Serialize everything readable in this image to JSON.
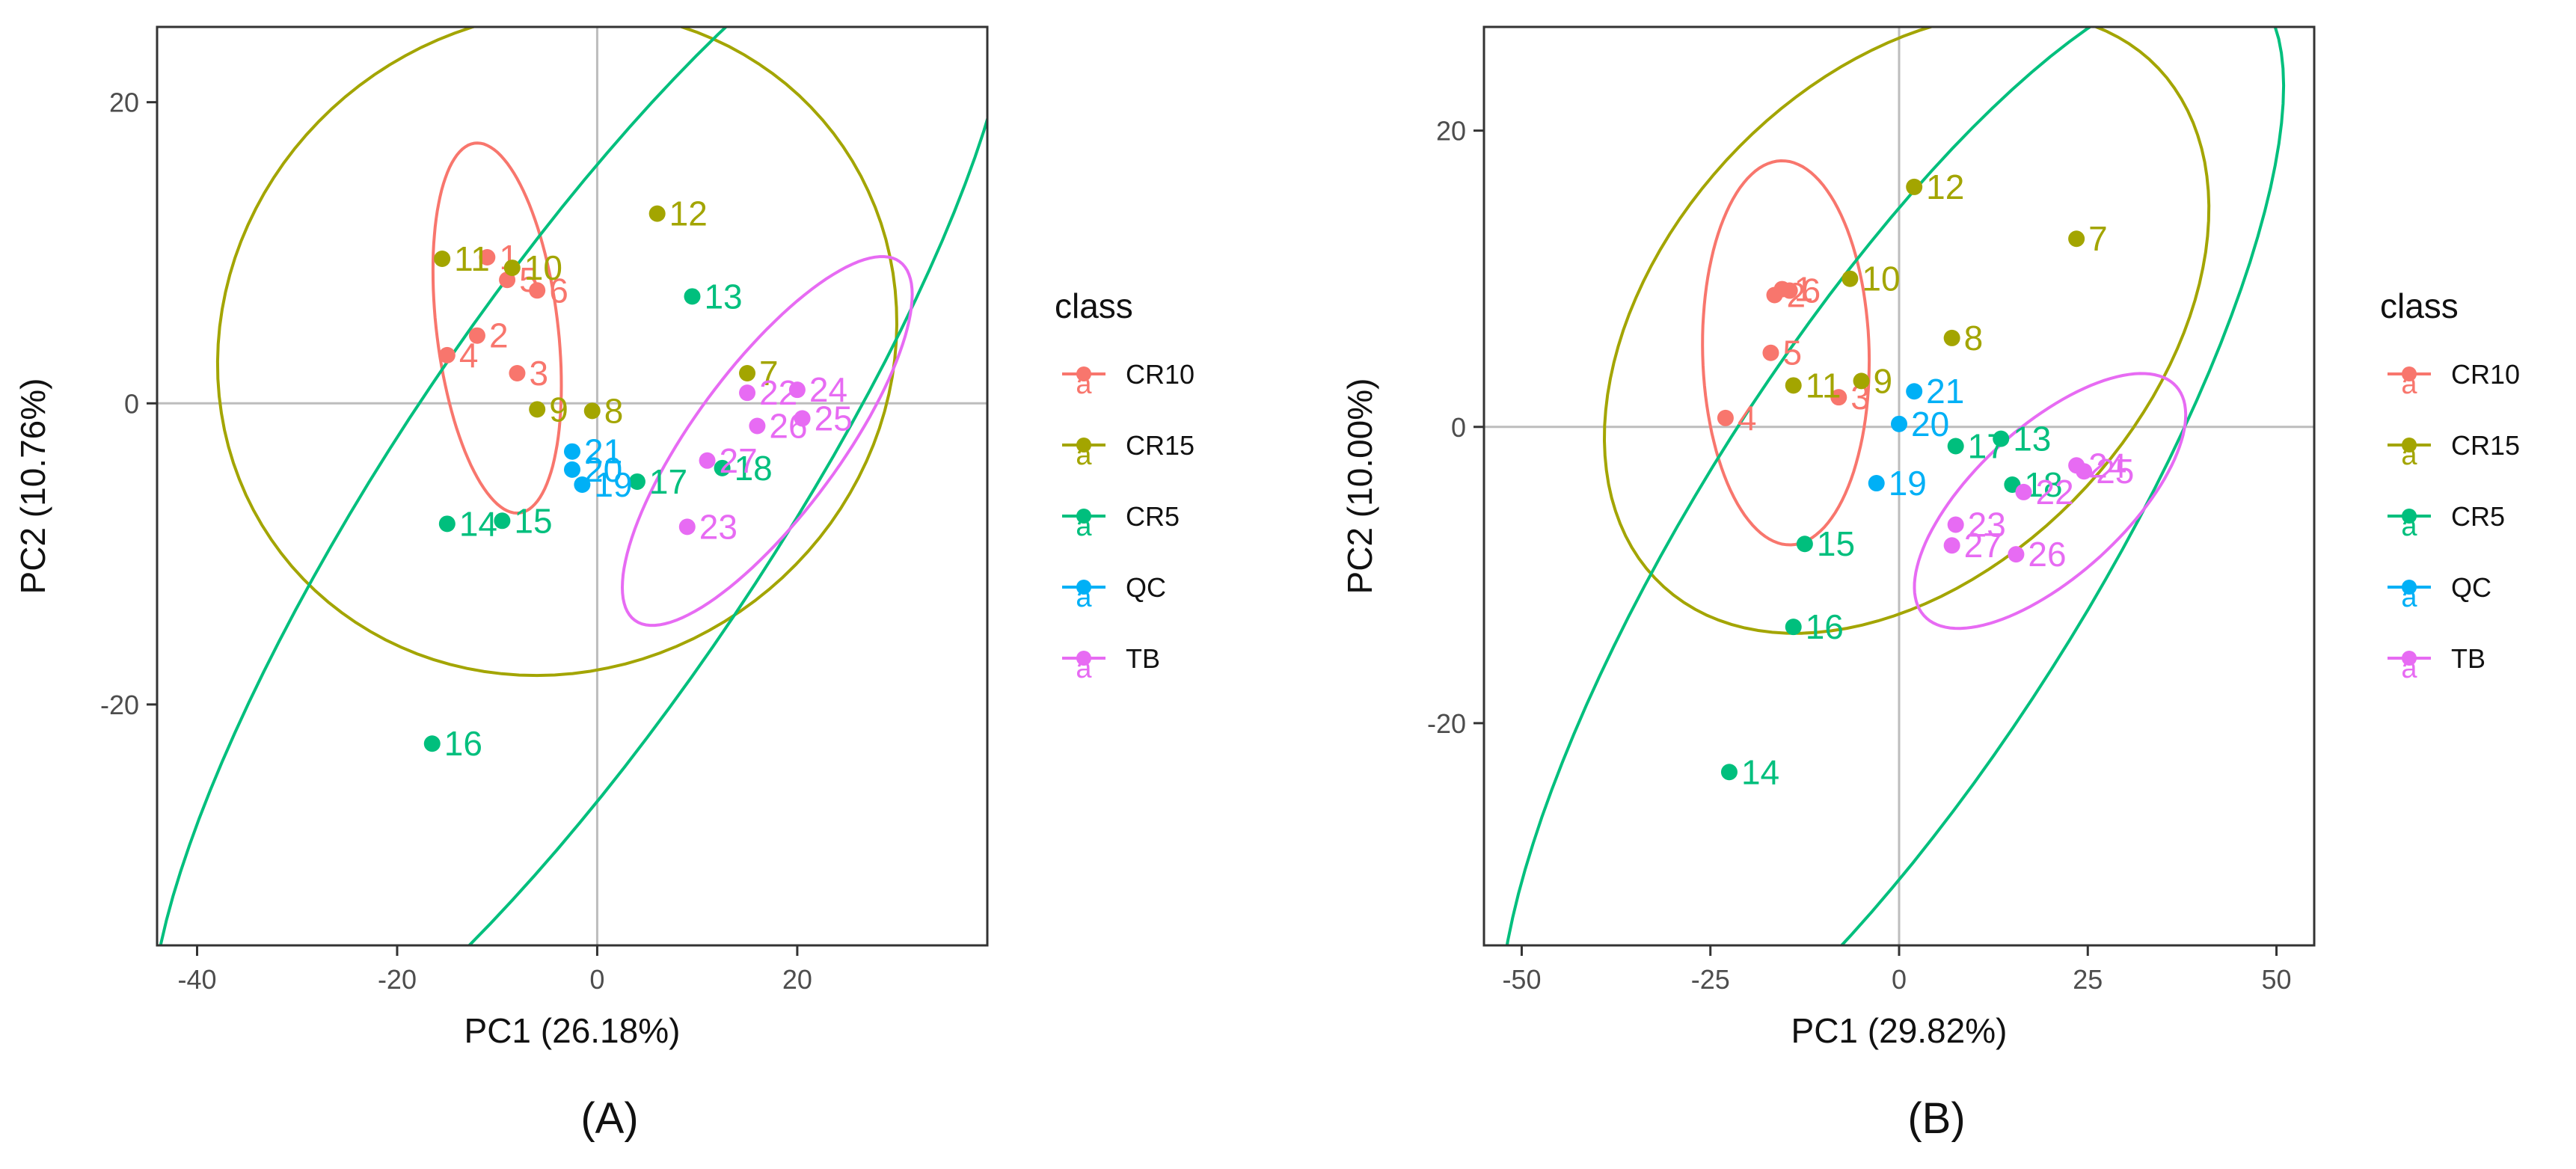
{
  "colors": {
    "CR10": "#F8766D",
    "CR15": "#A3A500",
    "CR5": "#00BF7D",
    "QC": "#00B0F6",
    "TB": "#E76BF3"
  },
  "chart_data": [
    {
      "type": "scatter",
      "panel_label": "(A)",
      "xlabel": "PC1 (26.18%)",
      "ylabel": "PC2 (10.76%)",
      "xlim": [
        -44,
        39
      ],
      "ylim": [
        -36,
        25
      ],
      "xticks": [
        -40,
        -20,
        0,
        20
      ],
      "xtick_labels": [
        "-40",
        "-20",
        "0",
        "20"
      ],
      "yticks": [
        -20,
        0,
        20
      ],
      "ytick_labels": [
        "-20",
        "0",
        "20"
      ],
      "legend": {
        "title": "class",
        "position": "right",
        "entries": [
          "CR10",
          "CR15",
          "CR5",
          "QC",
          "TB"
        ],
        "key_glyph": "a"
      },
      "series": [
        {
          "name": "CR10",
          "points": [
            {
              "label": "1",
              "x": -11,
              "y": 9.7
            },
            {
              "label": "5",
              "x": -9,
              "y": 8.2
            },
            {
              "label": "6",
              "x": -6,
              "y": 7.5
            },
            {
              "label": "2",
              "x": -12,
              "y": 4.5
            },
            {
              "label": "4",
              "x": -15,
              "y": 3.2
            },
            {
              "label": "3",
              "x": -8,
              "y": 2
            }
          ]
        },
        {
          "name": "CR15",
          "points": [
            {
              "label": "11",
              "x": -15.5,
              "y": 9.6
            },
            {
              "label": "10",
              "x": -8.5,
              "y": 9
            },
            {
              "label": "12",
              "x": 6,
              "y": 12.6
            },
            {
              "label": "7",
              "x": 15,
              "y": 2
            },
            {
              "label": "9",
              "x": -6,
              "y": -0.4
            },
            {
              "label": "8",
              "x": -0.5,
              "y": -0.5
            }
          ]
        },
        {
          "name": "CR5",
          "points": [
            {
              "label": "13",
              "x": 9.5,
              "y": 7.1
            },
            {
              "label": "17",
              "x": 4,
              "y": -5.2
            },
            {
              "label": "18",
              "x": 12.5,
              "y": -4.3
            },
            {
              "label": "14",
              "x": -15,
              "y": -8
            },
            {
              "label": "15",
              "x": -9.5,
              "y": -7.8
            },
            {
              "label": "16",
              "x": -16.5,
              "y": -22.6
            }
          ]
        },
        {
          "name": "QC",
          "points": [
            {
              "label": "21",
              "x": -2.5,
              "y": -3.2
            },
            {
              "label": "20",
              "x": -2.5,
              "y": -4.4
            },
            {
              "label": "19",
              "x": -1.5,
              "y": -5.4
            }
          ]
        },
        {
          "name": "TB",
          "points": [
            {
              "label": "22",
              "x": 15,
              "y": 0.7
            },
            {
              "label": "24",
              "x": 20,
              "y": 0.9
            },
            {
              "label": "26",
              "x": 16,
              "y": -1.5
            },
            {
              "label": "25",
              "x": 20.5,
              "y": -1
            },
            {
              "label": "27",
              "x": 11,
              "y": -3.8
            },
            {
              "label": "23",
              "x": 9,
              "y": -8.2
            }
          ]
        }
      ],
      "ellipses": [
        {
          "class": "CR10",
          "cx": -10,
          "cy": 5,
          "rx": 6,
          "ry": 12.5,
          "angle_deg": -12
        },
        {
          "class": "CR15",
          "cx": -4,
          "cy": 4,
          "rx": 34,
          "ry": 22,
          "angle_deg": -4
        },
        {
          "class": "CR5",
          "cx": -1.5,
          "cy": -6.5,
          "rx": 57,
          "ry": 16,
          "angle_deg": -43
        },
        {
          "class": "TB",
          "cx": 17,
          "cy": -2.5,
          "rx": 18,
          "ry": 6,
          "angle_deg": -39
        }
      ]
    },
    {
      "type": "scatter",
      "panel_label": "(B)",
      "xlabel": "PC1 (29.82%)",
      "ylabel": "PC2 (10.00%)",
      "xlim": [
        -55,
        55
      ],
      "ylim": [
        -35,
        27
      ],
      "xticks": [
        -50,
        -25,
        0,
        25,
        50
      ],
      "xtick_labels": [
        "-50",
        "-25",
        "0",
        "25",
        "50"
      ],
      "yticks": [
        -20,
        0,
        20
      ],
      "yticks_note": "",
      "ytick_labels": [
        "-20",
        "0",
        "20"
      ],
      "legend": {
        "title": "class",
        "position": "right",
        "entries": [
          "CR10",
          "CR15",
          "CR5",
          "QC",
          "TB"
        ],
        "key_glyph": "a"
      },
      "series": [
        {
          "name": "CR10",
          "points": [
            {
              "label": "1",
              "x": -15.5,
              "y": 9.3
            },
            {
              "label": "2",
              "x": -16.5,
              "y": 8.9
            },
            {
              "label": "6",
              "x": -14.5,
              "y": 9.2
            },
            {
              "label": "5",
              "x": -17,
              "y": 5
            },
            {
              "label": "4",
              "x": -23,
              "y": 0.6
            },
            {
              "label": "3",
              "x": -8,
              "y": 2
            }
          ]
        },
        {
          "name": "CR15",
          "points": [
            {
              "label": "12",
              "x": 2,
              "y": 16.2
            },
            {
              "label": "10",
              "x": -6.5,
              "y": 10
            },
            {
              "label": "7",
              "x": 23.5,
              "y": 12.7
            },
            {
              "label": "8",
              "x": 7,
              "y": 6
            },
            {
              "label": "11",
              "x": -14,
              "y": 2.8
            },
            {
              "label": "9",
              "x": -5,
              "y": 3.1
            }
          ]
        },
        {
          "name": "CR5",
          "points": [
            {
              "label": "13",
              "x": 13.5,
              "y": -0.8
            },
            {
              "label": "17",
              "x": 7.5,
              "y": -1.3
            },
            {
              "label": "18",
              "x": 15,
              "y": -3.9
            },
            {
              "label": "15",
              "x": -12.5,
              "y": -7.9
            },
            {
              "label": "16",
              "x": -14,
              "y": -13.5
            },
            {
              "label": "14",
              "x": -22.5,
              "y": -23.3
            }
          ]
        },
        {
          "name": "QC",
          "points": [
            {
              "label": "21",
              "x": 2,
              "y": 2.4
            },
            {
              "label": "20",
              "x": 0,
              "y": 0.2
            },
            {
              "label": "19",
              "x": -3,
              "y": -3.8
            }
          ]
        },
        {
          "name": "TB",
          "points": [
            {
              "label": "22",
              "x": 16.5,
              "y": -4.4
            },
            {
              "label": "24",
              "x": 23.5,
              "y": -2.6
            },
            {
              "label": "25",
              "x": 24.5,
              "y": -3
            },
            {
              "label": "23",
              "x": 7.5,
              "y": -6.6
            },
            {
              "label": "27",
              "x": 7,
              "y": -8
            },
            {
              "label": "26",
              "x": 15.5,
              "y": -8.6
            }
          ]
        }
      ],
      "ellipses": [
        {
          "class": "CR10",
          "cx": -15,
          "cy": 5,
          "rx": 11,
          "ry": 13,
          "angle_deg": -8
        },
        {
          "class": "CR15",
          "cx": 1,
          "cy": 7,
          "rx": 41,
          "ry": 19,
          "angle_deg": -14
        },
        {
          "class": "CR5",
          "cx": -1,
          "cy": -8.5,
          "rx": 62,
          "ry": 19,
          "angle_deg": -35
        },
        {
          "class": "TB",
          "cx": 20,
          "cy": -5,
          "rx": 19,
          "ry": 6,
          "angle_deg": -20
        }
      ]
    }
  ]
}
